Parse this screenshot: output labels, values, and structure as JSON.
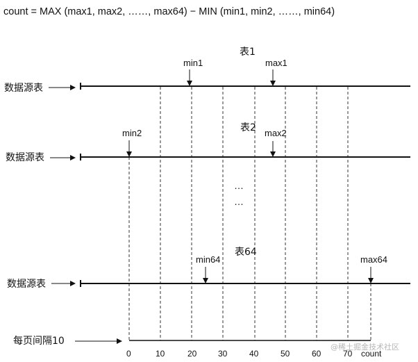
{
  "formula": "count = MAX (max1, max2, ……, max64) − MIN (min1, min2, ……, min64)",
  "tables": [
    {
      "title": "表1",
      "source_label": "数据源表",
      "min_label": "min1",
      "max_label": "max1"
    },
    {
      "title": "表2",
      "source_label": "数据源表",
      "min_label": "min2",
      "max_label": "max2"
    },
    {
      "title": "表64",
      "source_label": "数据源表",
      "min_label": "min64",
      "max_label": "max64"
    }
  ],
  "ellipsis": [
    "…",
    "…"
  ],
  "page_interval_label": "每页间隔10",
  "axis_ticks": [
    "0",
    "10",
    "20",
    "30",
    "40",
    "50",
    "60",
    "70",
    "count"
  ],
  "watermark": "@稀土掘金技术社区",
  "colors": {
    "line": "#111111",
    "text": "#111111",
    "watermark": "#b7b7b7"
  }
}
